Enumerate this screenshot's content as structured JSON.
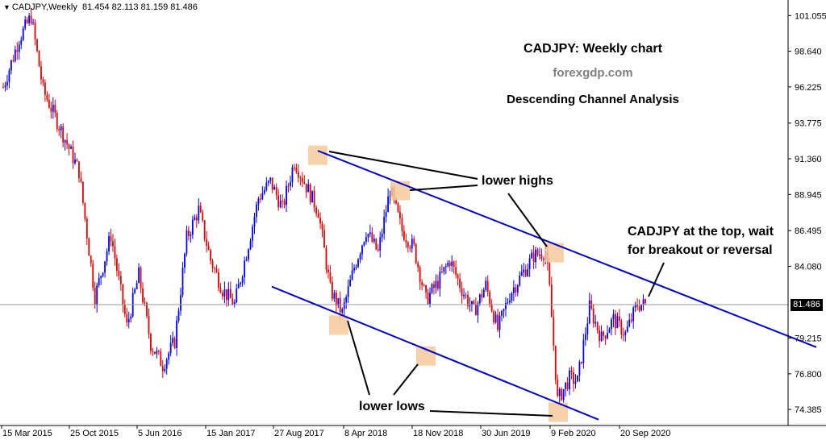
{
  "symbol": {
    "name": "CADJPY,Weekly",
    "ohlc": "81.454 82.113 81.159 81.486"
  },
  "title": {
    "line1": "CADJPY: Weekly chart",
    "line2": "forexgdp.com",
    "line3": "Descending Channel Analysis"
  },
  "annotations": {
    "lower_highs": "lower highs",
    "lower_lows": "lower lows",
    "top_line1": "CADJPY at the top, wait",
    "top_line2": "for breakout or reversal"
  },
  "current_price": "81.486",
  "colors": {
    "bull": "#0000ff",
    "bear": "#e00000",
    "channel": "#0000cc",
    "highlight": "#f5c99a",
    "price_line": "#9a9a9a"
  },
  "chart_data": {
    "type": "candlestick",
    "title": "CADJPY: Weekly chart",
    "subtitle": "Descending Channel Analysis",
    "y_ticks": [
      "101.055",
      "98.640",
      "96.225",
      "93.775",
      "91.360",
      "88.945",
      "86.495",
      "84.080",
      "81.486",
      "79.215",
      "76.800",
      "74.385"
    ],
    "x_ticks": [
      "15 Mar 2015",
      "25 Oct 2015",
      "5 Jun 2016",
      "15 Jan 2017",
      "27 Aug 2017",
      "8 Apr 2018",
      "18 Nov 2018",
      "30 Jun 2019",
      "9 Feb 2020",
      "20 Sep 2020"
    ],
    "ylim": [
      73.3,
      102.0
    ],
    "anchors": [
      [
        0,
        96.2
      ],
      [
        8,
        99.5
      ],
      [
        14,
        101.0
      ],
      [
        20,
        96.0
      ],
      [
        30,
        93.0
      ],
      [
        38,
        90.5
      ],
      [
        46,
        82.0
      ],
      [
        54,
        86.2
      ],
      [
        62,
        80.0
      ],
      [
        68,
        83.5
      ],
      [
        74,
        78.8
      ],
      [
        80,
        77.4
      ],
      [
        86,
        79.0
      ],
      [
        92,
        86.0
      ],
      [
        98,
        87.9
      ],
      [
        104,
        84.5
      ],
      [
        110,
        82.5
      ],
      [
        116,
        81.5
      ],
      [
        122,
        85.0
      ],
      [
        128,
        88.7
      ],
      [
        134,
        89.8
      ],
      [
        140,
        88.0
      ],
      [
        146,
        91.2
      ],
      [
        152,
        89.5
      ],
      [
        158,
        87.8
      ],
      [
        164,
        82.5
      ],
      [
        170,
        80.9
      ],
      [
        176,
        84.0
      ],
      [
        182,
        86.5
      ],
      [
        188,
        85.0
      ],
      [
        194,
        89.3
      ],
      [
        200,
        86.5
      ],
      [
        206,
        85.3
      ],
      [
        212,
        81.8
      ],
      [
        218,
        83.0
      ],
      [
        224,
        84.5
      ],
      [
        230,
        82.5
      ],
      [
        236,
        81.0
      ],
      [
        242,
        82.8
      ],
      [
        248,
        79.8
      ],
      [
        254,
        82.2
      ],
      [
        260,
        83.5
      ],
      [
        266,
        84.8
      ],
      [
        272,
        85.1
      ],
      [
        274,
        82.5
      ],
      [
        278,
        75.0
      ],
      [
        284,
        76.5
      ],
      [
        288,
        76.3
      ],
      [
        294,
        81.3
      ],
      [
        300,
        79.2
      ],
      [
        306,
        80.5
      ],
      [
        312,
        79.5
      ],
      [
        318,
        81.5
      ],
      [
        322,
        81.49
      ]
    ],
    "channel": {
      "upper": {
        "x1": 394,
        "y1": 91.9,
        "x2": 1012,
        "y2": 78.6
      },
      "lower": {
        "x1": 337,
        "y1": 82.7,
        "x2": 742,
        "y2": 73.7
      }
    },
    "highlights": [
      {
        "x": 394,
        "y": 91.6
      },
      {
        "x": 496,
        "y": 89.2
      },
      {
        "x": 687,
        "y": 85.0
      },
      {
        "x": 420,
        "y": 80.1
      },
      {
        "x": 528,
        "y": 78.0
      },
      {
        "x": 692,
        "y": 74.2
      }
    ]
  }
}
